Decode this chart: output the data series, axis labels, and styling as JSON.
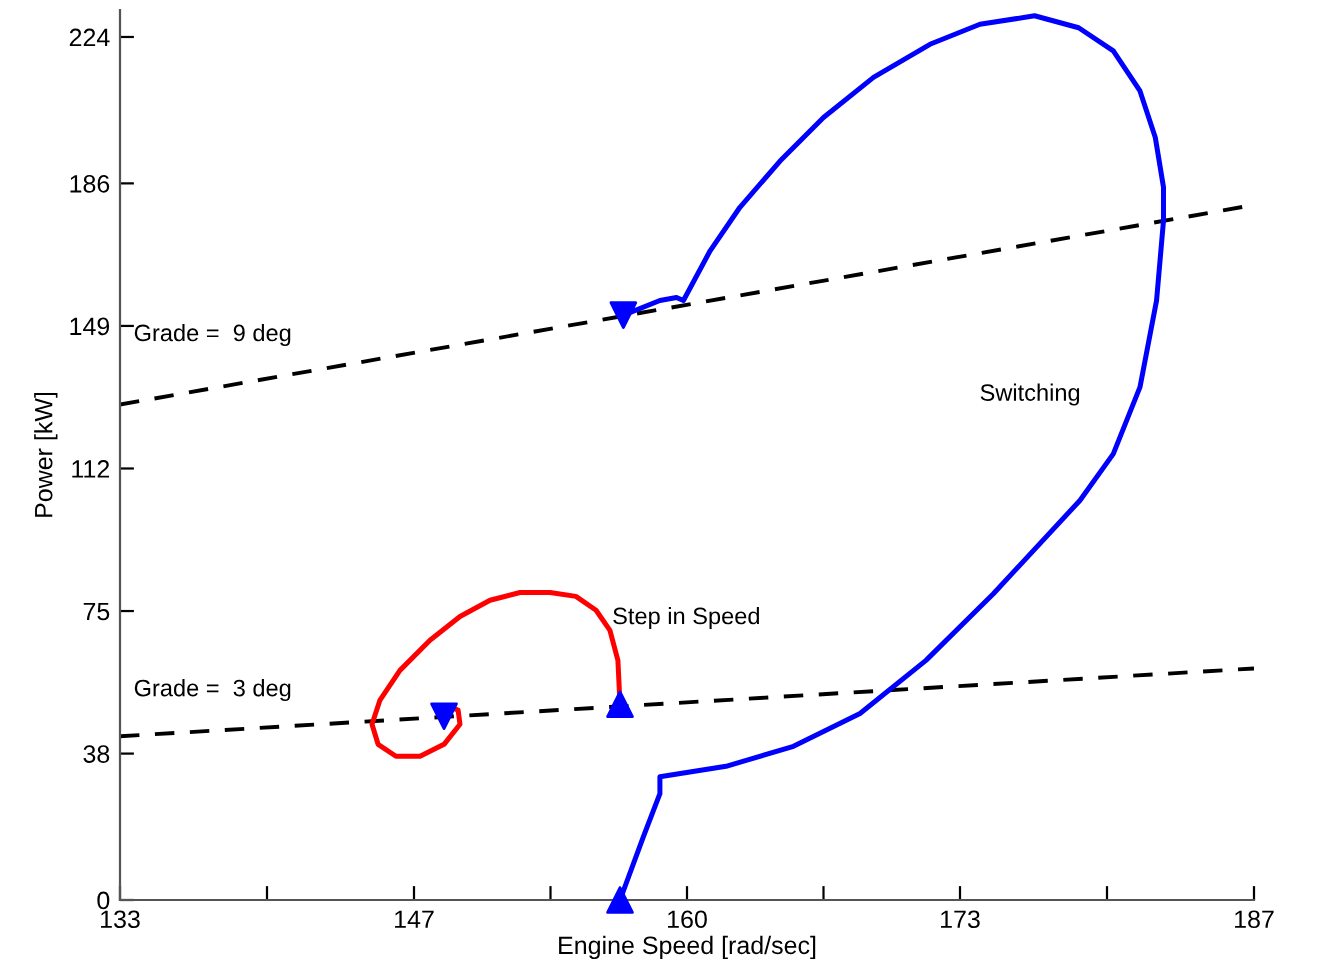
{
  "chart_data": {
    "type": "line",
    "xlabel": "Engine Speed [rad/sec]",
    "ylabel": "Power [kW]",
    "xlim": [
      133,
      187
    ],
    "ylim": [
      0,
      231
    ],
    "xticks": [
      133,
      {
        "value": 140,
        "label": null
      },
      147,
      {
        "value": 153.5,
        "label": null
      },
      160,
      {
        "value": 166.5,
        "label": null
      },
      173,
      {
        "value": 180,
        "label": null
      },
      187
    ],
    "yticks": [
      0,
      38,
      75,
      112,
      149,
      186,
      224
    ],
    "grid": false,
    "legend": false,
    "series": [
      {
        "color": "#000000",
        "line_style": "dashed",
        "x": [
          133,
          187
        ],
        "values": [
          128.6,
          180.4
        ]
      },
      {
        "color": "#000000",
        "line_style": "dashed",
        "x": [
          133,
          187
        ],
        "values": [
          42.5,
          60.1
        ]
      },
      {
        "color": "#ff0000",
        "line_style": "solid",
        "x": [
          156.81,
          156.71,
          156.33,
          155.67,
          154.71,
          153.48,
          152.05,
          150.62,
          149.19,
          147.76,
          146.33,
          145.38,
          145.0,
          145.29,
          146.14,
          147.29,
          148.43,
          149.19,
          149.1,
          148.62,
          148.24
        ],
        "values": [
          50.8,
          62.2,
          70.0,
          75.2,
          78.8,
          79.8,
          79.8,
          77.8,
          73.6,
          67.4,
          59.6,
          51.9,
          45.6,
          40.4,
          37.3,
          37.3,
          40.4,
          45.6,
          49.3,
          50.3,
          48.7
        ]
      },
      {
        "color": "#0000ff",
        "line_style": "solid",
        "x": [
          156.81,
          157.92,
          158.71,
          158.71,
          161.86,
          165.07,
          168.24,
          171.38,
          174.59,
          178.71,
          180.3,
          181.57,
          182.36,
          182.69,
          182.69,
          182.3,
          181.57,
          180.3,
          178.65,
          176.55,
          173.95,
          171.57,
          168.88,
          166.5,
          164.43,
          162.52,
          161.1,
          159.83,
          159.5,
          158.71,
          156.97
        ],
        "values": [
          0,
          16.4,
          27.6,
          32.0,
          34.7,
          39.9,
          48.4,
          62.2,
          79.5,
          103.7,
          115.8,
          133.1,
          155.6,
          176.3,
          185.0,
          197.9,
          210.0,
          220.4,
          226.4,
          229.5,
          227.3,
          222.1,
          213.5,
          203.1,
          191.8,
          179.8,
          168.5,
          155.6,
          156.4,
          155.6,
          151.8
        ]
      },
      {
        "type": "scatter",
        "color": "#0000ff",
        "marker": "triangle",
        "x": [
          156.81,
          156.81
        ],
        "values": [
          50.8,
          0
        ]
      },
      {
        "type": "scatter",
        "color": "#0000ff",
        "marker": "triangle_down",
        "x": [
          148.43,
          156.97
        ],
        "values": [
          47.7,
          151.8
        ]
      }
    ],
    "annotations": [
      "Grade =  9 deg",
      "Grade =  3 deg",
      "Switching",
      "Step in Speed"
    ]
  }
}
